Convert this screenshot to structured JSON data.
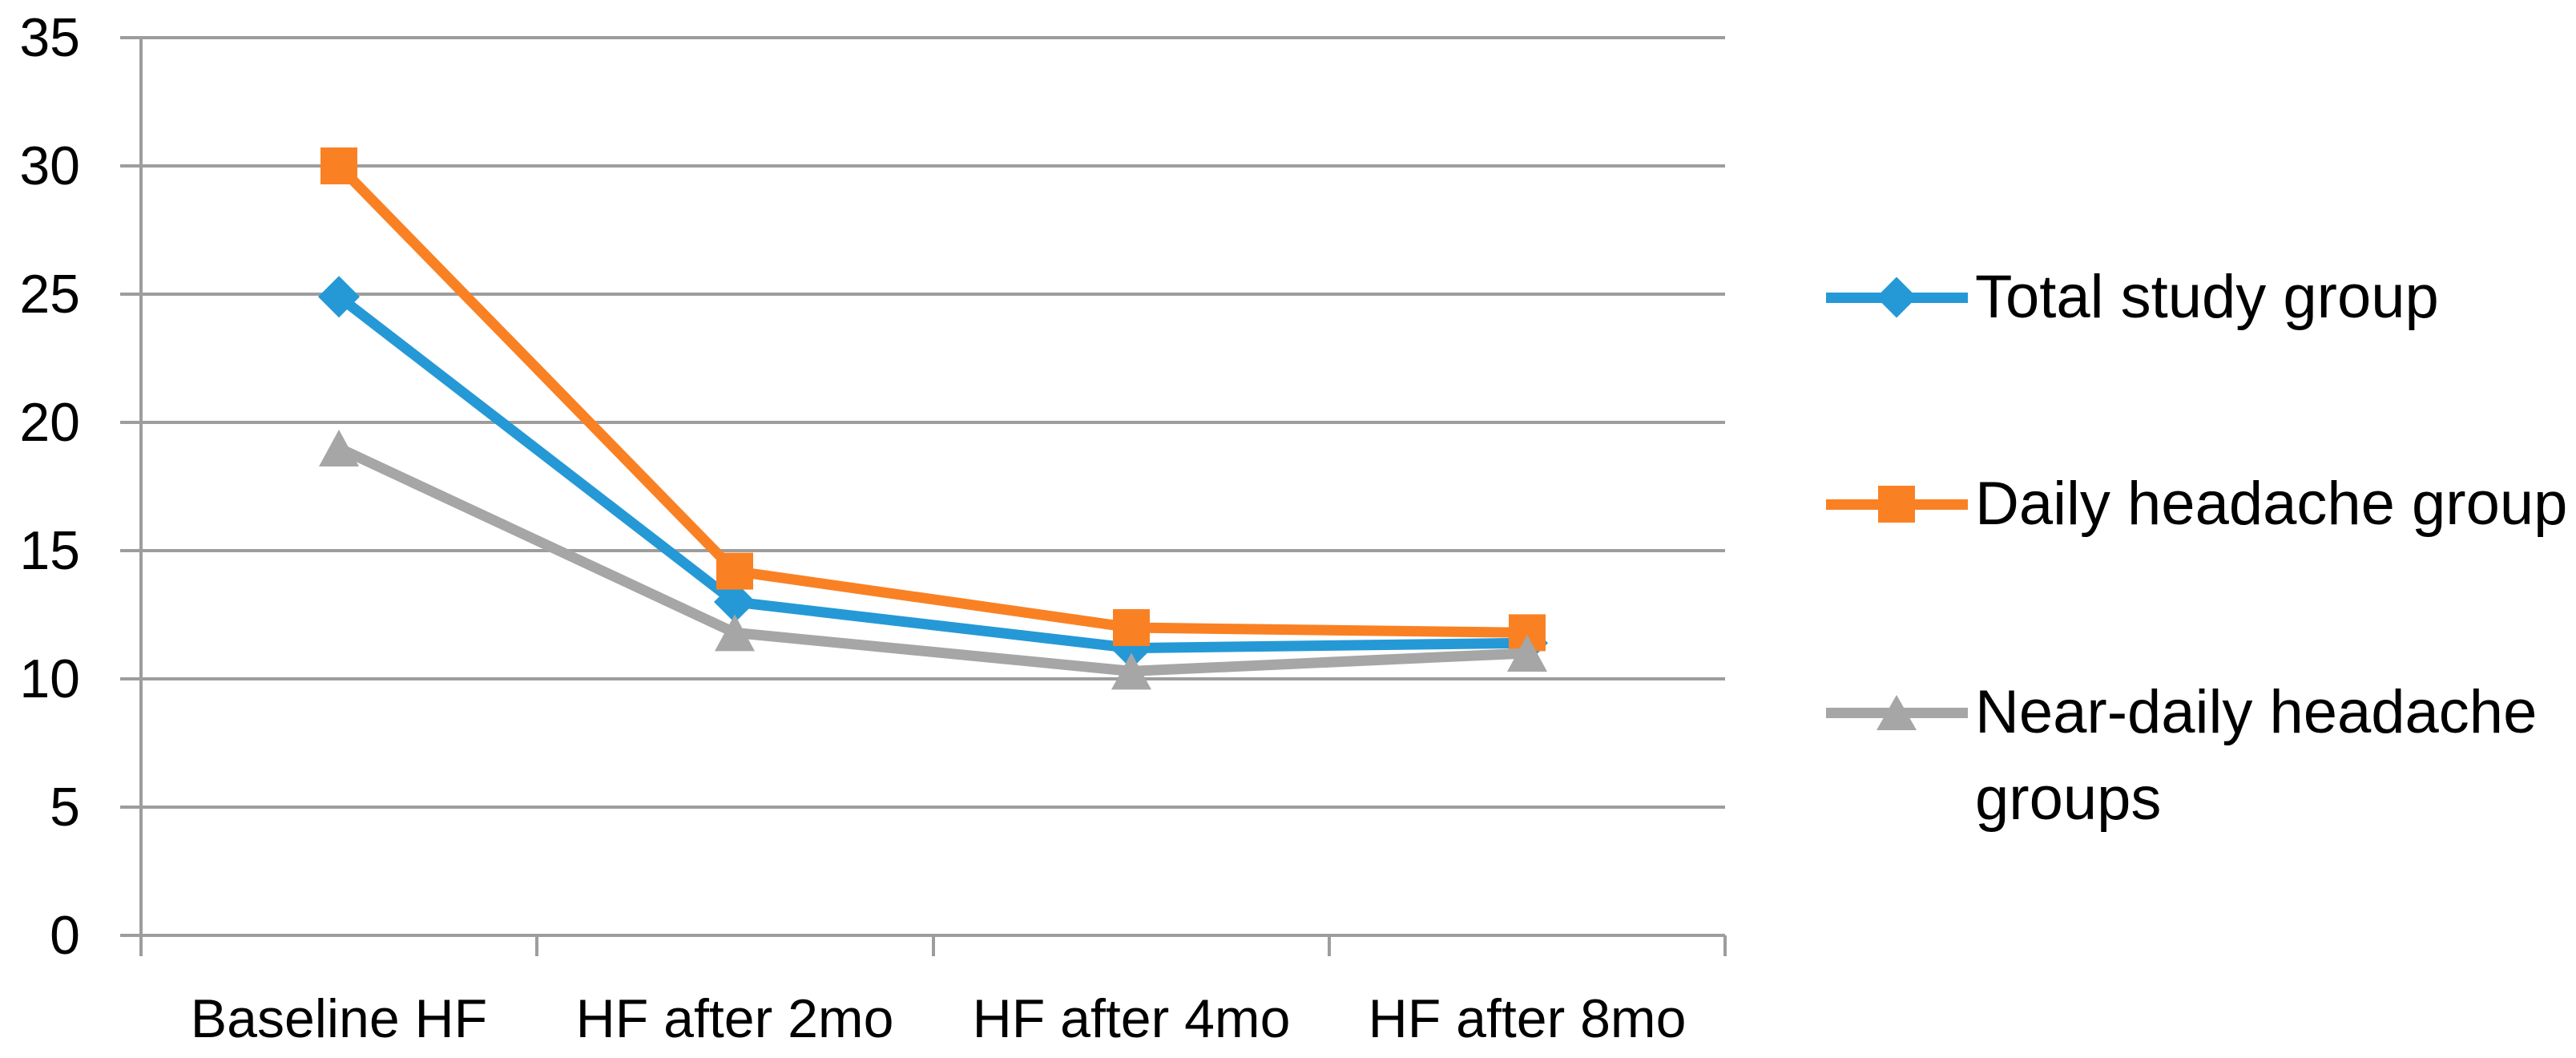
{
  "chart_data": {
    "type": "line",
    "title": "",
    "xlabel": "",
    "ylabel": "",
    "categories": [
      "Baseline HF",
      "HF after 2mo",
      "HF after 4mo",
      "HF after 8mo"
    ],
    "series": [
      {
        "name": "Total study group",
        "color": "#2599D6",
        "marker": "diamond",
        "values": [
          24.9,
          13.0,
          11.2,
          11.4
        ]
      },
      {
        "name": "Daily headache group",
        "color": "#F98124",
        "marker": "square",
        "values": [
          30.0,
          14.2,
          12.0,
          11.8
        ]
      },
      {
        "name": "Near-daily headache groups",
        "color": "#A6A6A6",
        "marker": "triangle",
        "values": [
          19.0,
          11.8,
          10.3,
          11.0
        ]
      }
    ],
    "ylim": [
      0,
      35
    ],
    "yticks": [
      0,
      5,
      10,
      15,
      20,
      25,
      30,
      35
    ],
    "grid": true,
    "gridline_color": "#9D9D9D",
    "axis_color": "#9D9D9D",
    "text_color": "#000000",
    "legend_position": "right",
    "legend_entries": [
      "Total study group",
      "Daily headache group",
      "Near-daily headache groups"
    ]
  }
}
